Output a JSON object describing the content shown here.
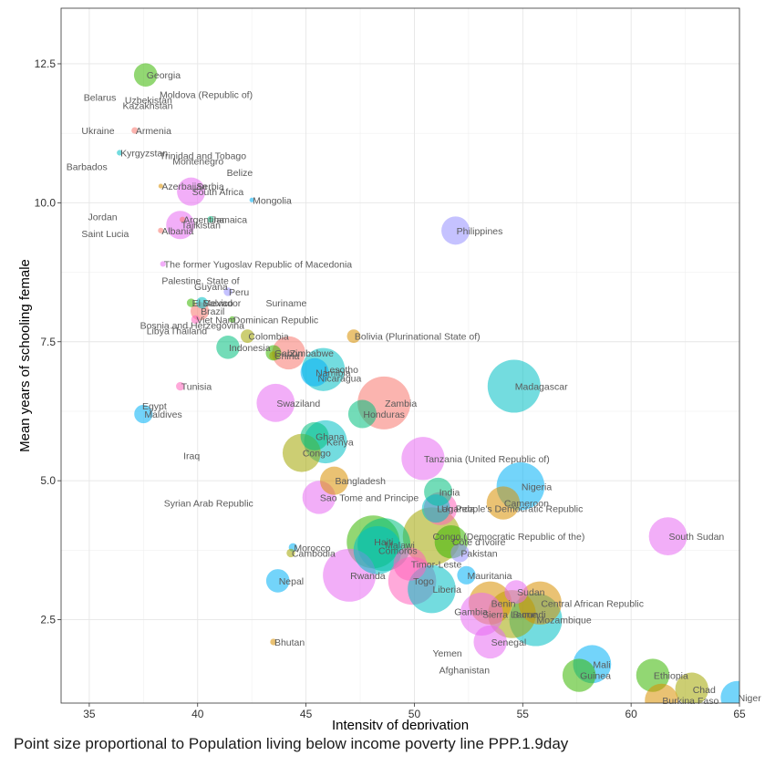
{
  "caption": "Point size proportional to Population living below income poverty line PPP.1.9day",
  "chart_data": {
    "type": "scatter",
    "title": "",
    "xlabel": "Intensity of deprivation",
    "ylabel": "Mean years of schooling female",
    "xlim": [
      33.7,
      65
    ],
    "ylim": [
      1.0,
      13.5
    ],
    "x_ticks": [
      35,
      40,
      45,
      50,
      55,
      60,
      65
    ],
    "y_ticks": [
      2.5,
      5.0,
      7.5,
      10.0,
      12.5
    ],
    "x_tick_labels": [
      "35",
      "40",
      "45",
      "50",
      "55",
      "60",
      "65"
    ],
    "y_tick_labels": [
      "2.5",
      "5.0",
      "7.5",
      "10.0",
      "12.5"
    ],
    "grid": true,
    "size_variable": "Population living below income poverty line PPP.1.9day",
    "palette": [
      "#F8766D",
      "#D89000",
      "#A3A500",
      "#39B600",
      "#00BF7D",
      "#00BFC4",
      "#00B0F6",
      "#9590FF",
      "#E76BF3",
      "#FF62BC"
    ],
    "points": [
      {
        "label": "Georgia",
        "x": 37.6,
        "y": 12.3,
        "size": 2,
        "color": "#39B600"
      },
      {
        "label": "Moldova (Republic of)",
        "x": 38.2,
        "y": 11.95,
        "size": 0,
        "color": "#00BF7D"
      },
      {
        "label": "Belarus",
        "x": 34.7,
        "y": 11.9,
        "size": 0,
        "color": "#00B0F6"
      },
      {
        "label": "Uzbekistan",
        "x": 36.6,
        "y": 11.85,
        "size": 0,
        "color": "#9590FF"
      },
      {
        "label": "Kazakhstan",
        "x": 36.5,
        "y": 11.75,
        "size": 0,
        "color": "#E76BF3"
      },
      {
        "label": "Ukraine",
        "x": 34.6,
        "y": 11.3,
        "size": 0,
        "color": "#00BFC4"
      },
      {
        "label": "Armenia",
        "x": 37.1,
        "y": 11.3,
        "size": 0.3,
        "color": "#F8766D"
      },
      {
        "label": "Kyrgyzstan",
        "x": 36.4,
        "y": 10.9,
        "size": 0.2,
        "color": "#00BFC4"
      },
      {
        "label": "Trinidad and Tobago",
        "x": 38.2,
        "y": 10.85,
        "size": 0,
        "color": "#A3A500"
      },
      {
        "label": "Montenegro",
        "x": 38.8,
        "y": 10.75,
        "size": 0,
        "color": "#FF62BC"
      },
      {
        "label": "Barbados",
        "x": 33.9,
        "y": 10.65,
        "size": 0,
        "color": "#00BFC4"
      },
      {
        "label": "Belize",
        "x": 41.3,
        "y": 10.55,
        "size": 0,
        "color": "#9590FF"
      },
      {
        "label": "Azerbaijan",
        "x": 38.3,
        "y": 10.3,
        "size": 0.1,
        "color": "#D89000"
      },
      {
        "label": "Serbia",
        "x": 39.9,
        "y": 10.3,
        "size": 0,
        "color": "#00BFC4"
      },
      {
        "label": "South Africa",
        "x": 39.7,
        "y": 10.2,
        "size": 2.5,
        "color": "#E76BF3"
      },
      {
        "label": "Mongolia",
        "x": 42.5,
        "y": 10.05,
        "size": 0.1,
        "color": "#00B0F6"
      },
      {
        "label": "Jordan",
        "x": 34.9,
        "y": 9.75,
        "size": 0,
        "color": "#00BFC4"
      },
      {
        "label": "Argentina",
        "x": 39.3,
        "y": 9.7,
        "size": 0.2,
        "color": "#F8766D"
      },
      {
        "label": "Jamaica",
        "x": 40.6,
        "y": 9.7,
        "size": 0.3,
        "color": "#00BF7D"
      },
      {
        "label": "Tajikistan",
        "x": 39.2,
        "y": 9.6,
        "size": 2.5,
        "color": "#E76BF3"
      },
      {
        "label": "Albania",
        "x": 38.3,
        "y": 9.5,
        "size": 0.2,
        "color": "#F8766D"
      },
      {
        "label": "Saint Lucia",
        "x": 34.6,
        "y": 9.45,
        "size": 0,
        "color": "#00BF7D"
      },
      {
        "label": "Philippines",
        "x": 51.9,
        "y": 9.5,
        "size": 2.5,
        "color": "#9590FF"
      },
      {
        "label": "The former Yugoslav Republic of Macedonia",
        "x": 38.4,
        "y": 8.9,
        "size": 0.2,
        "color": "#E76BF3"
      },
      {
        "label": "Palestine, State of",
        "x": 38.3,
        "y": 8.6,
        "size": 0,
        "color": "#00B0F6"
      },
      {
        "label": "Guyana",
        "x": 39.8,
        "y": 8.5,
        "size": 0,
        "color": "#9590FF"
      },
      {
        "label": "Peru",
        "x": 41.4,
        "y": 8.4,
        "size": 0.5,
        "color": "#9590FF"
      },
      {
        "label": "El Salvador",
        "x": 39.7,
        "y": 8.2,
        "size": 0.5,
        "color": "#39B600"
      },
      {
        "label": "Mexico",
        "x": 40.2,
        "y": 8.2,
        "size": 0.8,
        "color": "#00BFC4"
      },
      {
        "label": "Suriname",
        "x": 43.1,
        "y": 8.2,
        "size": 0,
        "color": "#00B0F6"
      },
      {
        "label": "Brazil",
        "x": 40.1,
        "y": 8.05,
        "size": 1.5,
        "color": "#F8766D"
      },
      {
        "label": "Viet Nam",
        "x": 39.9,
        "y": 7.9,
        "size": 0.5,
        "color": "#FF62BC"
      },
      {
        "label": "Dominican Republic",
        "x": 41.6,
        "y": 7.9,
        "size": 0.3,
        "color": "#39B600"
      },
      {
        "label": "Bosnia and Herzegovina",
        "x": 37.3,
        "y": 7.8,
        "size": 0,
        "color": "#D89000"
      },
      {
        "label": "Libya",
        "x": 37.6,
        "y": 7.7,
        "size": 0,
        "color": "#00BF7D"
      },
      {
        "label": "Thailand",
        "x": 38.7,
        "y": 7.7,
        "size": 0,
        "color": "#9590FF"
      },
      {
        "label": "Colombia",
        "x": 42.3,
        "y": 7.6,
        "size": 1,
        "color": "#A3A500"
      },
      {
        "label": "Bolivia (Plurinational State of)",
        "x": 47.2,
        "y": 7.6,
        "size": 1,
        "color": "#D89000"
      },
      {
        "label": "Indonesia",
        "x": 41.4,
        "y": 7.4,
        "size": 2,
        "color": "#00BF7D"
      },
      {
        "label": "Gabon",
        "x": 43.5,
        "y": 7.3,
        "size": 1.2,
        "color": "#39B600"
      },
      {
        "label": "Zimbabwe",
        "x": 44.2,
        "y": 7.3,
        "size": 3,
        "color": "#F8766D"
      },
      {
        "label": "China",
        "x": 43.5,
        "y": 7.25,
        "size": 0.5,
        "color": "#A3A500"
      },
      {
        "label": "Lesotho",
        "x": 45.8,
        "y": 7.0,
        "size": 4,
        "color": "#00BFC4"
      },
      {
        "label": "Namibia",
        "x": 45.4,
        "y": 6.95,
        "size": 2.5,
        "color": "#00B0F6"
      },
      {
        "label": "Nicaragua",
        "x": 45.5,
        "y": 6.85,
        "size": 0,
        "color": "#00BFC4"
      },
      {
        "label": "Madagascar",
        "x": 54.6,
        "y": 6.7,
        "size": 5,
        "color": "#00BFC4"
      },
      {
        "label": "Tunisia",
        "x": 39.2,
        "y": 6.7,
        "size": 0.5,
        "color": "#FF62BC"
      },
      {
        "label": "Swaziland",
        "x": 43.6,
        "y": 6.4,
        "size": 3.5,
        "color": "#E76BF3"
      },
      {
        "label": "Zambia",
        "x": 48.6,
        "y": 6.4,
        "size": 5,
        "color": "#F8766D"
      },
      {
        "label": "Egypt",
        "x": 37.4,
        "y": 6.35,
        "size": 0,
        "color": "#00B0F6"
      },
      {
        "label": "Honduras",
        "x": 47.6,
        "y": 6.2,
        "size": 2.5,
        "color": "#00BF7D"
      },
      {
        "label": "Maldives",
        "x": 37.5,
        "y": 6.2,
        "size": 1.5,
        "color": "#00B0F6"
      },
      {
        "label": "Ghana",
        "x": 45.4,
        "y": 5.8,
        "size": 2.5,
        "color": "#00BF7D"
      },
      {
        "label": "Kenya",
        "x": 45.9,
        "y": 5.7,
        "size": 4,
        "color": "#00BFC4"
      },
      {
        "label": "Congo",
        "x": 44.8,
        "y": 5.5,
        "size": 3.5,
        "color": "#A3A500"
      },
      {
        "label": "Iraq",
        "x": 39.3,
        "y": 5.45,
        "size": 0,
        "color": "#00BFC4"
      },
      {
        "label": "Tanzania (United Republic of)",
        "x": 50.4,
        "y": 5.4,
        "size": 4,
        "color": "#E76BF3"
      },
      {
        "label": "Bangladesh",
        "x": 46.3,
        "y": 5.0,
        "size": 2.5,
        "color": "#D89000"
      },
      {
        "label": "Nigeria",
        "x": 54.9,
        "y": 4.9,
        "size": 4.5,
        "color": "#00B0F6"
      },
      {
        "label": "India",
        "x": 51.1,
        "y": 4.8,
        "size": 2.5,
        "color": "#00BF7D"
      },
      {
        "label": "Sao Tome and Principe",
        "x": 45.6,
        "y": 4.7,
        "size": 3,
        "color": "#E76BF3"
      },
      {
        "label": "Syrian Arab Republic",
        "x": 38.4,
        "y": 4.6,
        "size": 0,
        "color": "#00B0F6"
      },
      {
        "label": "Cameroon",
        "x": 54.1,
        "y": 4.6,
        "size": 3,
        "color": "#D89000"
      },
      {
        "label": "Lao People's Democratic Republic",
        "x": 51.0,
        "y": 4.5,
        "size": 2.5,
        "color": "#00BFC4"
      },
      {
        "label": "Uganda",
        "x": 51.2,
        "y": 4.5,
        "size": 3,
        "color": "#FF62BC"
      },
      {
        "label": "Congo (Democratic Republic of the)",
        "x": 50.8,
        "y": 4.0,
        "size": 5.5,
        "color": "#A3A500"
      },
      {
        "label": "South Sudan",
        "x": 61.7,
        "y": 4.0,
        "size": 3.5,
        "color": "#E76BF3"
      },
      {
        "label": "Haiti",
        "x": 48.1,
        "y": 3.9,
        "size": 5,
        "color": "#39B600"
      },
      {
        "label": "Côte d'Ivoire",
        "x": 51.7,
        "y": 3.9,
        "size": 3,
        "color": "#39B600"
      },
      {
        "label": "Malawi",
        "x": 48.6,
        "y": 3.85,
        "size": 5,
        "color": "#00BF7D"
      },
      {
        "label": "Comoros",
        "x": 48.3,
        "y": 3.75,
        "size": 4.5,
        "color": "#00BFC4"
      },
      {
        "label": "Morocco",
        "x": 44.4,
        "y": 3.8,
        "size": 0.5,
        "color": "#00B0F6"
      },
      {
        "label": "Cambodia",
        "x": 44.3,
        "y": 3.7,
        "size": 0.5,
        "color": "#A3A500"
      },
      {
        "label": "Pakistan",
        "x": 52.1,
        "y": 3.7,
        "size": 1.5,
        "color": "#9590FF"
      },
      {
        "label": "Timor-Leste",
        "x": 49.8,
        "y": 3.5,
        "size": 3,
        "color": "#FF62BC"
      },
      {
        "label": "Rwanda",
        "x": 47.0,
        "y": 3.3,
        "size": 5,
        "color": "#E76BF3"
      },
      {
        "label": "Mauritania",
        "x": 52.4,
        "y": 3.3,
        "size": 1.5,
        "color": "#00B0F6"
      },
      {
        "label": "Nepal",
        "x": 43.7,
        "y": 3.2,
        "size": 2,
        "color": "#00B0F6"
      },
      {
        "label": "Togo",
        "x": 49.9,
        "y": 3.2,
        "size": 4.5,
        "color": "#FF62BC"
      },
      {
        "label": "Liberia",
        "x": 50.8,
        "y": 3.05,
        "size": 4.5,
        "color": "#00BFC4"
      },
      {
        "label": "Sudan",
        "x": 54.7,
        "y": 3.0,
        "size": 2,
        "color": "#E76BF3"
      },
      {
        "label": "Central African Republic",
        "x": 55.8,
        "y": 2.8,
        "size": 4,
        "color": "#D89000"
      },
      {
        "label": "Benin",
        "x": 53.5,
        "y": 2.8,
        "size": 4,
        "color": "#D89000"
      },
      {
        "label": "Gambia",
        "x": 51.8,
        "y": 2.65,
        "size": 0,
        "color": "#00BFC4"
      },
      {
        "label": "Sierra Leone",
        "x": 53.1,
        "y": 2.6,
        "size": 4,
        "color": "#E76BF3"
      },
      {
        "label": "Burundi",
        "x": 54.5,
        "y": 2.6,
        "size": 4.5,
        "color": "#A3A500"
      },
      {
        "label": "Mozambique",
        "x": 55.6,
        "y": 2.5,
        "size": 5,
        "color": "#00BFC4"
      },
      {
        "label": "Senegal",
        "x": 53.5,
        "y": 2.1,
        "size": 3,
        "color": "#E76BF3"
      },
      {
        "label": "Bhutan",
        "x": 43.5,
        "y": 2.1,
        "size": 0.3,
        "color": "#D89000"
      },
      {
        "label": "Yemen",
        "x": 50.8,
        "y": 1.9,
        "size": 0,
        "color": "#00BFC4"
      },
      {
        "label": "Mali",
        "x": 58.2,
        "y": 1.7,
        "size": 3.5,
        "color": "#00B0F6"
      },
      {
        "label": "Afghanistan",
        "x": 51.1,
        "y": 1.6,
        "size": 0,
        "color": "#00B0F6"
      },
      {
        "label": "Guinea",
        "x": 57.6,
        "y": 1.5,
        "size": 3,
        "color": "#39B600"
      },
      {
        "label": "Ethiopia",
        "x": 61.0,
        "y": 1.5,
        "size": 3,
        "color": "#39B600"
      },
      {
        "label": "Chad",
        "x": 62.8,
        "y": 1.25,
        "size": 3,
        "color": "#A3A500"
      },
      {
        "label": "Burkina Faso",
        "x": 61.4,
        "y": 1.05,
        "size": 3,
        "color": "#D89000"
      },
      {
        "label": "Niger",
        "x": 64.9,
        "y": 1.1,
        "size": 3,
        "color": "#00B0F6"
      }
    ]
  }
}
